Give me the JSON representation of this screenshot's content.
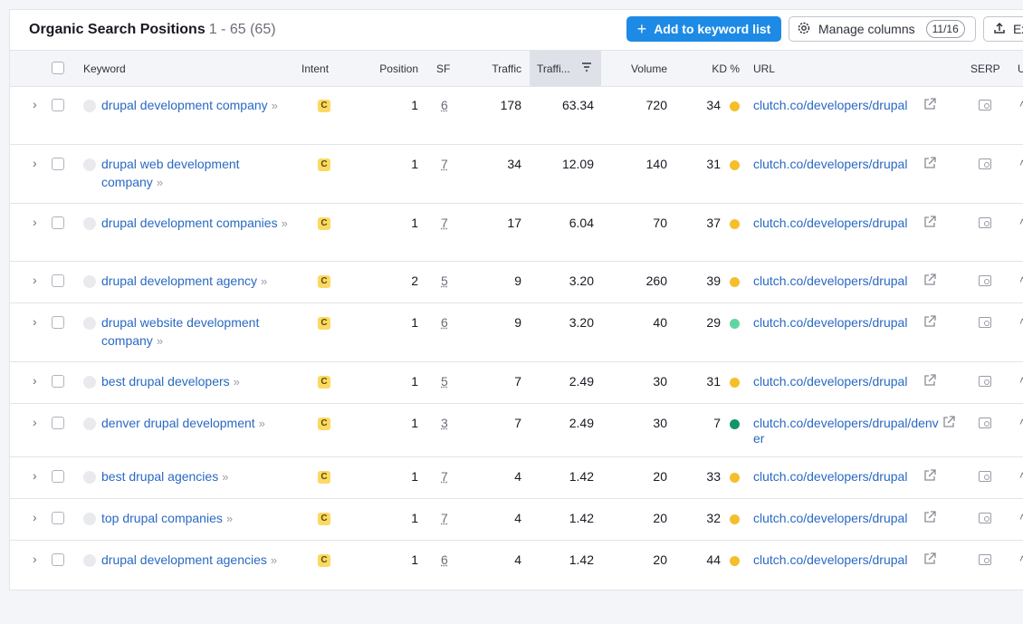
{
  "header": {
    "title": "Organic Search Positions",
    "count": "1 - 65 (65)",
    "add_button": "Add to keyword list",
    "manage_button": "Manage columns",
    "manage_count": "11/16",
    "export_button": "Ex"
  },
  "columns": {
    "keyword": "Keyword",
    "intent": "Intent",
    "position": "Position",
    "sf": "SF",
    "traffic": "Traffic",
    "traffic_pct": "Traffi...",
    "volume": "Volume",
    "kd": "KD %",
    "url": "URL",
    "serp": "SERP",
    "updated": "U"
  },
  "colors": {
    "primary": "#1d8ae6",
    "link": "#2969c3",
    "kd_yellow": "#f5be2b",
    "kd_light_green": "#5fd6a0",
    "kd_dark_green": "#14946a",
    "intent_badge": "#fbd962"
  },
  "rows": [
    {
      "keyword": "drupal development company",
      "intent": "C",
      "position": "1",
      "sf": "6",
      "traffic": "178",
      "traffic_pct": "63.34",
      "volume": "720",
      "kd": "34",
      "kd_color": "#f5be2b",
      "url": "clutch.co/developers/drupal"
    },
    {
      "keyword": "drupal web development company",
      "intent": "C",
      "position": "1",
      "sf": "7",
      "traffic": "34",
      "traffic_pct": "12.09",
      "volume": "140",
      "kd": "31",
      "kd_color": "#f5be2b",
      "url": "clutch.co/developers/drupal"
    },
    {
      "keyword": "drupal development companies",
      "intent": "C",
      "position": "1",
      "sf": "7",
      "traffic": "17",
      "traffic_pct": "6.04",
      "volume": "70",
      "kd": "37",
      "kd_color": "#f5be2b",
      "url": "clutch.co/developers/drupal"
    },
    {
      "keyword": "drupal development agency",
      "intent": "C",
      "position": "2",
      "sf": "5",
      "traffic": "9",
      "traffic_pct": "3.20",
      "volume": "260",
      "kd": "39",
      "kd_color": "#f5be2b",
      "url": "clutch.co/developers/drupal"
    },
    {
      "keyword": "drupal website development company",
      "intent": "C",
      "position": "1",
      "sf": "6",
      "traffic": "9",
      "traffic_pct": "3.20",
      "volume": "40",
      "kd": "29",
      "kd_color": "#5fd6a0",
      "url": "clutch.co/developers/drupal"
    },
    {
      "keyword": "best drupal developers",
      "intent": "C",
      "position": "1",
      "sf": "5",
      "traffic": "7",
      "traffic_pct": "2.49",
      "volume": "30",
      "kd": "31",
      "kd_color": "#f5be2b",
      "url": "clutch.co/developers/drupal"
    },
    {
      "keyword": "denver drupal development",
      "intent": "C",
      "position": "1",
      "sf": "3",
      "traffic": "7",
      "traffic_pct": "2.49",
      "volume": "30",
      "kd": "7",
      "kd_color": "#14946a",
      "url": "clutch.co/developers/drupal/denver"
    },
    {
      "keyword": "best drupal agencies",
      "intent": "C",
      "position": "1",
      "sf": "7",
      "traffic": "4",
      "traffic_pct": "1.42",
      "volume": "20",
      "kd": "33",
      "kd_color": "#f5be2b",
      "url": "clutch.co/developers/drupal"
    },
    {
      "keyword": "top drupal companies",
      "intent": "C",
      "position": "1",
      "sf": "7",
      "traffic": "4",
      "traffic_pct": "1.42",
      "volume": "20",
      "kd": "32",
      "kd_color": "#f5be2b",
      "url": "clutch.co/developers/drupal"
    },
    {
      "keyword": "drupal development agencies",
      "intent": "C",
      "position": "1",
      "sf": "6",
      "traffic": "4",
      "traffic_pct": "1.42",
      "volume": "20",
      "kd": "44",
      "kd_color": "#f5be2b",
      "url": "clutch.co/developers/drupal"
    }
  ]
}
